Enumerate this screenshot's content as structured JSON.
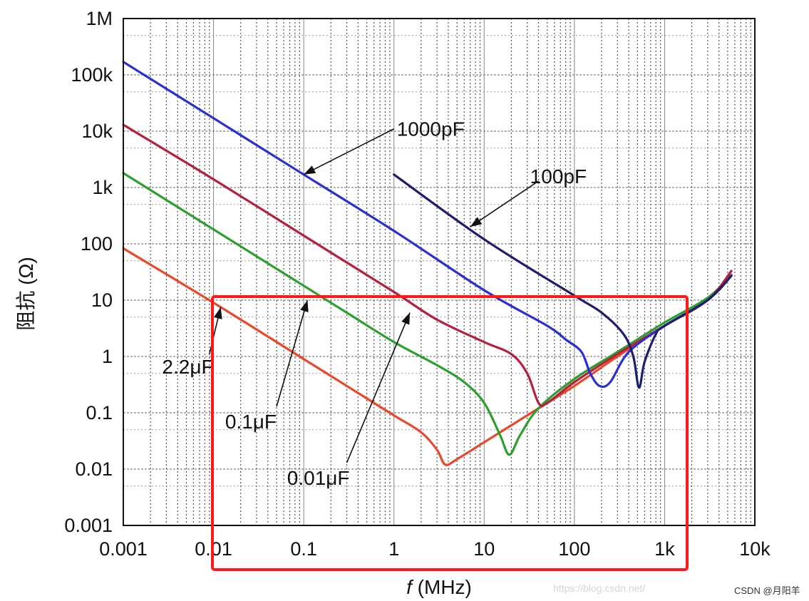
{
  "chart_data": {
    "type": "line",
    "title": "",
    "xlabel_italic": "f",
    "xlabel_rest": " (MHz)",
    "ylabel": "阻抗 (Ω)",
    "xscale": "log",
    "yscale": "log",
    "xlim": [
      0.001,
      10000
    ],
    "ylim": [
      0.001,
      1000000
    ],
    "grid": true,
    "x_ticks": [
      {
        "value": 0.001,
        "label": "0.001"
      },
      {
        "value": 0.01,
        "label": "0.01"
      },
      {
        "value": 0.1,
        "label": "0.1"
      },
      {
        "value": 1,
        "label": "1"
      },
      {
        "value": 10,
        "label": "10"
      },
      {
        "value": 100,
        "label": "100"
      },
      {
        "value": 1000,
        "label": "1k"
      },
      {
        "value": 10000,
        "label": "10k"
      }
    ],
    "y_ticks": [
      {
        "value": 0.001,
        "label": "0.001"
      },
      {
        "value": 0.01,
        "label": "0.01"
      },
      {
        "value": 0.1,
        "label": "0.1"
      },
      {
        "value": 1,
        "label": "1"
      },
      {
        "value": 10,
        "label": "10"
      },
      {
        "value": 100,
        "label": "100"
      },
      {
        "value": 1000,
        "label": "1k"
      },
      {
        "value": 10000,
        "label": "10k"
      },
      {
        "value": 100000,
        "label": "100k"
      },
      {
        "value": 1000000,
        "label": "1M"
      }
    ],
    "series": [
      {
        "name": "2.2μF",
        "color": "#e8492a",
        "points": [
          [
            0.001,
            83
          ],
          [
            0.01,
            9
          ],
          [
            0.1,
            0.9
          ],
          [
            0.3,
            0.3
          ],
          [
            1,
            0.09
          ],
          [
            2,
            0.045
          ],
          [
            3,
            0.022
          ],
          [
            3.7,
            0.012
          ],
          [
            5,
            0.015
          ],
          [
            10,
            0.03
          ],
          [
            30,
            0.09
          ],
          [
            100,
            0.3
          ],
          [
            300,
            1
          ],
          [
            1000,
            3.5
          ],
          [
            3000,
            10
          ],
          [
            5500,
            28
          ]
        ]
      },
      {
        "name": "0.1μF",
        "color": "#2e9e2e",
        "points": [
          [
            0.001,
            1800
          ],
          [
            0.01,
            180
          ],
          [
            0.1,
            18
          ],
          [
            0.3,
            6
          ],
          [
            1,
            1.8
          ],
          [
            3,
            0.7
          ],
          [
            6,
            0.35
          ],
          [
            10,
            0.15
          ],
          [
            15,
            0.04
          ],
          [
            19,
            0.018
          ],
          [
            25,
            0.04
          ],
          [
            40,
            0.12
          ],
          [
            100,
            0.4
          ],
          [
            300,
            1.2
          ],
          [
            1000,
            4
          ],
          [
            3000,
            11
          ],
          [
            5500,
            28
          ]
        ]
      },
      {
        "name": "0.01μF",
        "color": "#b3213e",
        "points": [
          [
            0.001,
            13000
          ],
          [
            0.01,
            1400
          ],
          [
            0.1,
            140
          ],
          [
            1,
            14
          ],
          [
            3,
            4.5
          ],
          [
            10,
            1.8
          ],
          [
            20,
            1.1
          ],
          [
            30,
            0.5
          ],
          [
            40,
            0.15
          ],
          [
            50,
            0.15
          ],
          [
            100,
            0.35
          ],
          [
            300,
            1.1
          ],
          [
            1000,
            3.5
          ],
          [
            3000,
            10
          ],
          [
            5500,
            33
          ]
        ]
      },
      {
        "name": "1000pF",
        "color": "#2b2fcf",
        "points": [
          [
            0.001,
            170000
          ],
          [
            0.01,
            17000
          ],
          [
            0.1,
            1700
          ],
          [
            1,
            170
          ],
          [
            10,
            15
          ],
          [
            50,
            3.5
          ],
          [
            80,
            2
          ],
          [
            120,
            1.2
          ],
          [
            150,
            0.5
          ],
          [
            190,
            0.3
          ],
          [
            250,
            0.35
          ],
          [
            400,
            1.2
          ],
          [
            1000,
            3.5
          ],
          [
            3000,
            10
          ],
          [
            5500,
            27
          ]
        ]
      },
      {
        "name": "100pF",
        "color": "#1e1e6e",
        "points": [
          [
            1,
            1700
          ],
          [
            10,
            120
          ],
          [
            100,
            12
          ],
          [
            200,
            6
          ],
          [
            350,
            2.5
          ],
          [
            450,
            1
          ],
          [
            520,
            0.28
          ],
          [
            600,
            0.8
          ],
          [
            800,
            2.5
          ],
          [
            1000,
            3.5
          ],
          [
            3000,
            10
          ],
          [
            5500,
            27
          ]
        ]
      }
    ],
    "annotations": [
      {
        "text": "1000pF",
        "x": 1,
        "y": 11000
      },
      {
        "text": "100pF",
        "x": 30,
        "y": 1600
      },
      {
        "text": "2.2μF",
        "x": 0.01,
        "y": 1
      },
      {
        "text": "0.1μF",
        "x": 0.05,
        "y": 0.1
      },
      {
        "text": "0.01μF",
        "x": 0.3,
        "y": 0.01
      }
    ],
    "highlight_box_color": "#ff1a1a"
  },
  "watermark": {
    "blog": "https://blog.csdn.net/",
    "credit": "CSDN @月阳羊"
  }
}
